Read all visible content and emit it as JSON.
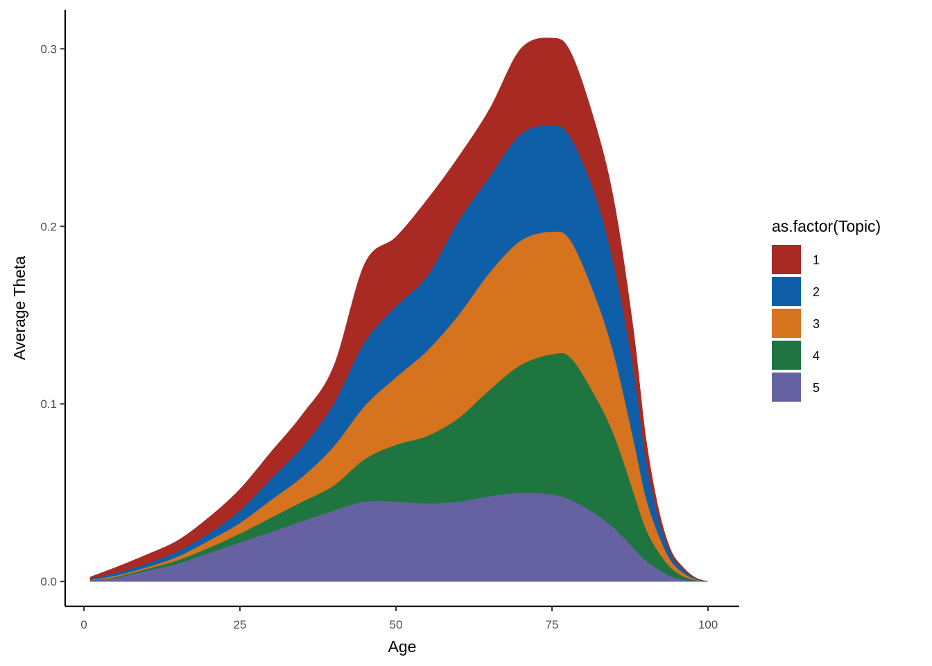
{
  "chart_data": {
    "type": "area",
    "stacked": true,
    "xlabel": "Age",
    "ylabel": "Average Theta",
    "xlim": [
      -3,
      105
    ],
    "ylim": [
      -0.014,
      0.322
    ],
    "x_ticks": [
      0,
      25,
      50,
      75,
      100
    ],
    "x_tick_labels": [
      "0",
      "25",
      "50",
      "75",
      "100"
    ],
    "y_ticks": [
      0.0,
      0.1,
      0.2,
      0.3
    ],
    "y_tick_labels": [
      "0.0",
      "0.1",
      "0.2",
      "0.3"
    ],
    "grid": false,
    "legend": {
      "title": "as.factor(Topic)",
      "placement": "right",
      "stack_order_top_to_bottom": [
        "1",
        "2",
        "3",
        "4",
        "5"
      ]
    },
    "x": [
      1,
      5,
      10,
      15,
      20,
      25,
      30,
      35,
      40,
      45,
      50,
      55,
      60,
      65,
      70,
      75,
      78,
      82,
      85,
      88,
      90,
      92,
      94,
      96,
      98,
      100
    ],
    "series": [
      {
        "name": "1",
        "color": "#A82A22",
        "values": [
          0.001,
          0.003,
          0.005,
          0.006,
          0.009,
          0.012,
          0.015,
          0.018,
          0.021,
          0.044,
          0.039,
          0.043,
          0.036,
          0.038,
          0.048,
          0.049,
          0.048,
          0.04,
          0.036,
          0.022,
          0.012,
          0.005,
          0.002,
          0.001,
          0.0003,
          0.0
        ]
      },
      {
        "name": "2",
        "color": "#0E5FA8",
        "values": [
          0.0005,
          0.0015,
          0.002,
          0.003,
          0.004,
          0.007,
          0.012,
          0.017,
          0.024,
          0.036,
          0.04,
          0.042,
          0.053,
          0.054,
          0.06,
          0.06,
          0.058,
          0.057,
          0.05,
          0.04,
          0.022,
          0.01,
          0.004,
          0.002,
          0.0005,
          0.0
        ]
      },
      {
        "name": "3",
        "color": "#D6731F",
        "values": [
          0.0003,
          0.0008,
          0.001,
          0.002,
          0.004,
          0.006,
          0.01,
          0.014,
          0.022,
          0.03,
          0.038,
          0.048,
          0.058,
          0.066,
          0.07,
          0.069,
          0.066,
          0.056,
          0.045,
          0.03,
          0.018,
          0.01,
          0.004,
          0.002,
          0.0005,
          0.0
        ]
      },
      {
        "name": "4",
        "color": "#1F7540",
        "values": [
          0.0002,
          0.0005,
          0.001,
          0.002,
          0.003,
          0.005,
          0.008,
          0.011,
          0.014,
          0.024,
          0.032,
          0.038,
          0.047,
          0.06,
          0.072,
          0.079,
          0.08,
          0.066,
          0.052,
          0.032,
          0.018,
          0.01,
          0.005,
          0.002,
          0.0005,
          0.0
        ]
      },
      {
        "name": "5",
        "color": "#6662A2",
        "values": [
          0.0005,
          0.002,
          0.006,
          0.01,
          0.016,
          0.022,
          0.028,
          0.034,
          0.04,
          0.045,
          0.045,
          0.044,
          0.045,
          0.048,
          0.05,
          0.049,
          0.046,
          0.038,
          0.03,
          0.019,
          0.012,
          0.007,
          0.003,
          0.001,
          0.0003,
          0.0
        ]
      }
    ]
  }
}
